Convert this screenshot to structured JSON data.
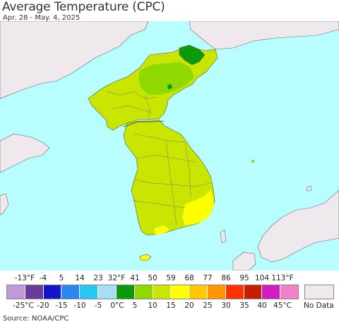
{
  "title": "Average Temperature (CPC)",
  "date_range": "Apr. 28 - May. 4, 2025",
  "source": "Source: NOAA/CPC",
  "no_data_label": "No Data",
  "colors": {
    "water": "#b8fefe",
    "land_outside": "#efe9ee",
    "no_data": "#efe9ee",
    "temp_5_10C": "#8fd800",
    "temp_10_15C": "#c8e600",
    "temp_15_20C": "#ffff00",
    "temp_0_5C": "#0a9a0a",
    "border": "#555555"
  },
  "legend": {
    "fahrenheit_labels": [
      "-13°F",
      "-4",
      "5",
      "14",
      "23",
      "32°F",
      "41",
      "50",
      "59",
      "68",
      "77",
      "86",
      "95",
      "104",
      "113°F"
    ],
    "celsius_labels": [
      "-25°C",
      "-20",
      "-15",
      "-10",
      "-5",
      "0°C",
      "5",
      "10",
      "15",
      "20",
      "25",
      "30",
      "35",
      "40",
      "45°C"
    ],
    "swatch_colors": [
      "#c09ad8",
      "#6a3c9a",
      "#1414c8",
      "#2888f0",
      "#28c8f5",
      "#a8ddf5",
      "#0a9a0a",
      "#8fd800",
      "#c8e600",
      "#ffff00",
      "#ffc800",
      "#ff9600",
      "#ff3200",
      "#c81e00",
      "#d21ebe",
      "#f082c8"
    ]
  }
}
